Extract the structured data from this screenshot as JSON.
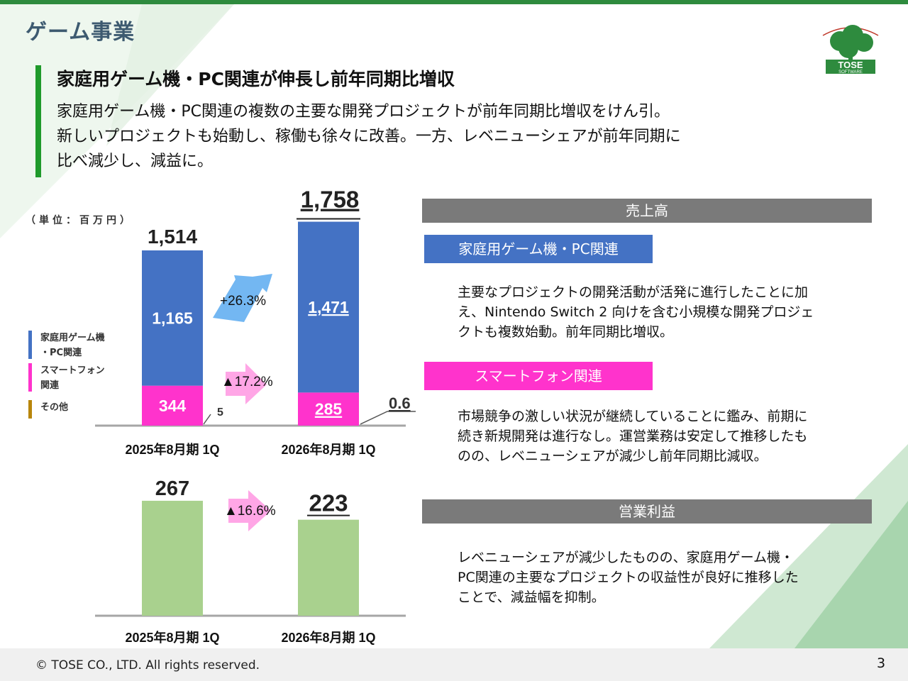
{
  "header": {
    "section_title": "ゲーム事業",
    "headline": "家庭用ゲーム機・PC関連が伸長し前年同期比増収",
    "lead_lines": [
      "家庭用ゲーム機・PC関連の複数の主要な開発プロジェクトが前年同期比増収をけん引。",
      "新しいプロジェクトも始動し、稼働も徐々に改善。一方、レベニューシェアが前年同期に",
      "比べ減少し、減益に。"
    ],
    "logo_text": "TOSE",
    "logo_subtext": "SOFTWARE"
  },
  "unit_label": "（単位：百万円）",
  "legend": [
    {
      "line1": "家庭用ゲーム機",
      "line2": "・PC関連",
      "color": "#4472c4"
    },
    {
      "line1": "スマートフォン",
      "line2": "関連",
      "color": "#ff33cc"
    },
    {
      "line1": "その他",
      "line2": "",
      "color": "#b8860b"
    }
  ],
  "chart_data": [
    {
      "type": "bar",
      "stacked": true,
      "title": "",
      "categories": [
        "2025年8月期 1Q",
        "2026年8月期 1Q"
      ],
      "series": [
        {
          "name": "家庭用ゲーム機・PC関連",
          "values": [
            1165,
            1471
          ],
          "labels": [
            "1,165",
            "1,471"
          ],
          "color": "#4472c4"
        },
        {
          "name": "スマートフォン関連",
          "values": [
            344,
            285
          ],
          "labels": [
            "344",
            "285"
          ],
          "color": "#ff33cc"
        },
        {
          "name": "その他",
          "values": [
            5,
            0.6
          ],
          "labels": [
            "5",
            "0.6"
          ],
          "color": "#b8860b"
        }
      ],
      "totals": [
        "1,514",
        "1,758"
      ],
      "total_values": [
        1514,
        1758
      ],
      "changes": [
        {
          "label": "+26.3%",
          "series": "家庭用ゲーム機・PC関連",
          "direction": "up",
          "color": "#5aaaf0"
        },
        {
          "label": "▲17.2%",
          "series": "スマートフォン関連",
          "direction": "down",
          "color": "#ff88dd"
        }
      ]
    },
    {
      "type": "bar",
      "stacked": false,
      "title": "",
      "categories": [
        "2025年8月期 1Q",
        "2026年8月期 1Q"
      ],
      "series": [
        {
          "name": "営業利益",
          "values": [
            267,
            223
          ],
          "labels": [
            "267",
            "223"
          ],
          "color": "#a9d18e"
        }
      ],
      "changes": [
        {
          "label": "▲16.6%",
          "direction": "down",
          "color": "#ff88dd"
        }
      ]
    }
  ],
  "panels": {
    "sales_head": "売上高",
    "console_tag": "家庭用ゲーム機・PC関連",
    "console_tag_color": "#4472c4",
    "console_desc": [
      "主要なプロジェクトの開発活動が活発に進行したことに加",
      "え、Nintendo Switch 2 向けを含む小規模な開発プロジェ",
      "クトも複数始動。前年同期比増収。"
    ],
    "smartphone_tag": "スマートフォン関連",
    "smartphone_tag_color": "#ff33cc",
    "smartphone_desc": [
      "市場競争の激しい状況が継続していることに鑑み、前期に",
      "続き新規開発は進行なし。運営業務は安定して推移したも",
      "のの、レベニューシェアが減少し前年同期比減収。"
    ],
    "profit_head": "営業利益",
    "profit_desc": [
      "レベニューシェアが減少したものの、家庭用ゲーム機・",
      "PC関連の主要なプロジェクトの収益性が良好に推移した",
      "ことで、減益幅を抑制。"
    ]
  },
  "footer": {
    "copyright": "© TOSE CO., LTD. All rights reserved.",
    "page_number": "3"
  }
}
